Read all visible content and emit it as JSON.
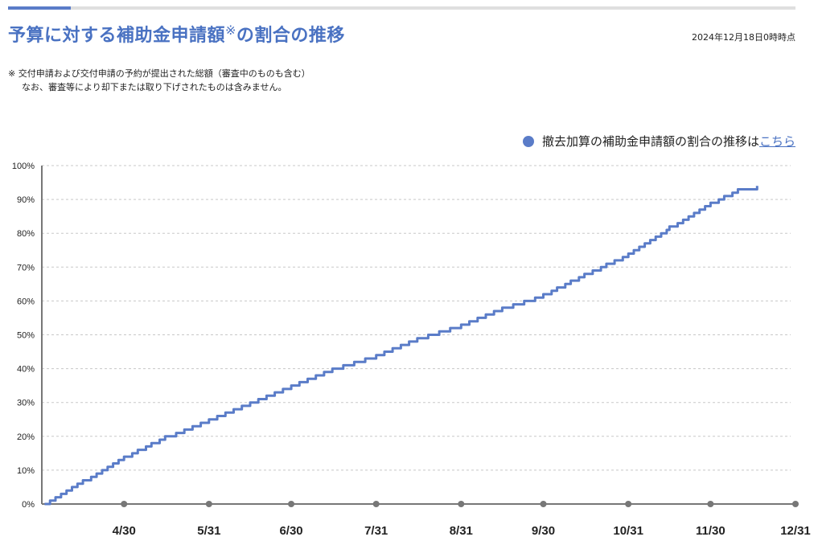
{
  "header": {
    "progress_fraction": 0.08,
    "title": "予算に対する補助金申請額",
    "title_mark": "※",
    "title_suffix": "の割合の推移",
    "timestamp": "2024年12月18日0時時点"
  },
  "note": {
    "line1": "※ 交付申請および交付申請の予約が提出された総額（審査中のものも含む）",
    "line2": "なお、審査等により却下または取り下げされたものは含みません。"
  },
  "legend": {
    "text": "撤去加算の補助金申請額の割合の推移は",
    "link": "こちら"
  },
  "colors": {
    "accent": "#4a72c2",
    "line": "#5a7cc8",
    "axis": "#777777",
    "grid": "#c8c8c8"
  },
  "chart_data": {
    "type": "line",
    "title": "",
    "xlabel": "",
    "ylabel": "",
    "ylim": [
      0,
      100
    ],
    "y_ticks": [
      "0%",
      "10%",
      "20%",
      "30%",
      "40%",
      "50%",
      "60%",
      "70%",
      "80%",
      "90%",
      "100%"
    ],
    "x_range": [
      "2024-03-31",
      "2024-12-31"
    ],
    "x_ticks": [
      {
        "date": "2024-04-30",
        "label": "4/30"
      },
      {
        "date": "2024-05-31",
        "label": "5/31"
      },
      {
        "date": "2024-06-30",
        "label": "6/30"
      },
      {
        "date": "2024-07-31",
        "label": "7/31"
      },
      {
        "date": "2024-08-31",
        "label": "8/31"
      },
      {
        "date": "2024-09-30",
        "label": "9/30"
      },
      {
        "date": "2024-10-31",
        "label": "10/31"
      },
      {
        "date": "2024-11-30",
        "label": "11/30"
      },
      {
        "date": "2024-12-31",
        "label": "12/31"
      }
    ],
    "grid": true,
    "series": [
      {
        "x": [
          "2024-04-01",
          "2024-04-15",
          "2024-04-30",
          "2024-05-15",
          "2024-05-31",
          "2024-06-15",
          "2024-06-30",
          "2024-07-15",
          "2024-07-31",
          "2024-08-15",
          "2024-08-31",
          "2024-09-15",
          "2024-09-30",
          "2024-10-15",
          "2024-10-31",
          "2024-11-15",
          "2024-11-30",
          "2024-12-10",
          "2024-12-17"
        ],
        "y": [
          0.5,
          7,
          14,
          20,
          25,
          30,
          35,
          40,
          44,
          49,
          53,
          58,
          62,
          68,
          74,
          82,
          89,
          93,
          94
        ]
      }
    ]
  }
}
